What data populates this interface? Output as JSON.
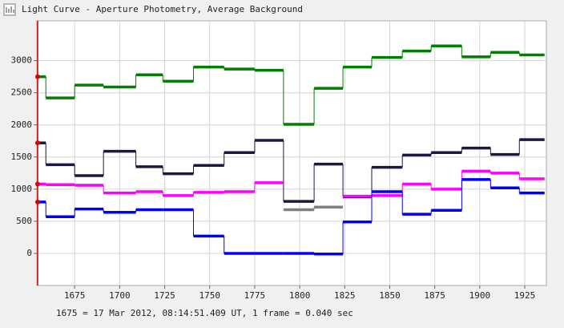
{
  "chart_data": {
    "type": "step",
    "title": "Light Curve - Aperture Photometry, Average Background",
    "footnote": "1675 = 17 Mar 2012, 08:14:51.409 UT, 1 frame = 0.040 sec",
    "x": [
      1654,
      1659,
      1675,
      1691,
      1709,
      1724,
      1741,
      1758,
      1775,
      1791,
      1808,
      1824,
      1840,
      1857,
      1873,
      1890,
      1906,
      1922,
      1936
    ],
    "series": [
      {
        "color": "#008000",
        "values": [
          2750,
          2420,
          2620,
          2590,
          2780,
          2680,
          2900,
          2870,
          2850,
          2010,
          2570,
          2900,
          3050,
          3150,
          3230,
          3060,
          3130,
          3090,
          null
        ]
      },
      {
        "color": "#1a1a40",
        "values": [
          1720,
          1380,
          1210,
          1590,
          1350,
          1240,
          1370,
          1570,
          1760,
          810,
          1390,
          880,
          1340,
          1530,
          1570,
          1640,
          1540,
          1770,
          null
        ]
      },
      {
        "color": "#ff00ff",
        "values": [
          1080,
          1070,
          1060,
          940,
          960,
          900,
          950,
          960,
          1100,
          null,
          null,
          890,
          900,
          1080,
          1000,
          1280,
          1250,
          1160,
          null
        ]
      },
      {
        "color": "#808080",
        "values": [
          null,
          null,
          null,
          null,
          null,
          null,
          null,
          null,
          null,
          680,
          720,
          null,
          null,
          null,
          null,
          null,
          null,
          null,
          null
        ]
      },
      {
        "color": "#0000ff",
        "values": [
          800,
          570,
          690,
          640,
          680,
          680,
          270,
          0,
          0,
          0,
          -10,
          490,
          960,
          610,
          670,
          1150,
          1020,
          940,
          null
        ]
      }
    ],
    "xlim": [
      1654,
      1937
    ],
    "ylim": [
      -500,
      3620
    ],
    "xticks": [
      1675,
      1700,
      1725,
      1750,
      1775,
      1800,
      1825,
      1850,
      1875,
      1900,
      1925
    ],
    "yticks": [
      0,
      500,
      1000,
      1500,
      2000,
      2500,
      3000
    ],
    "grid": true
  }
}
